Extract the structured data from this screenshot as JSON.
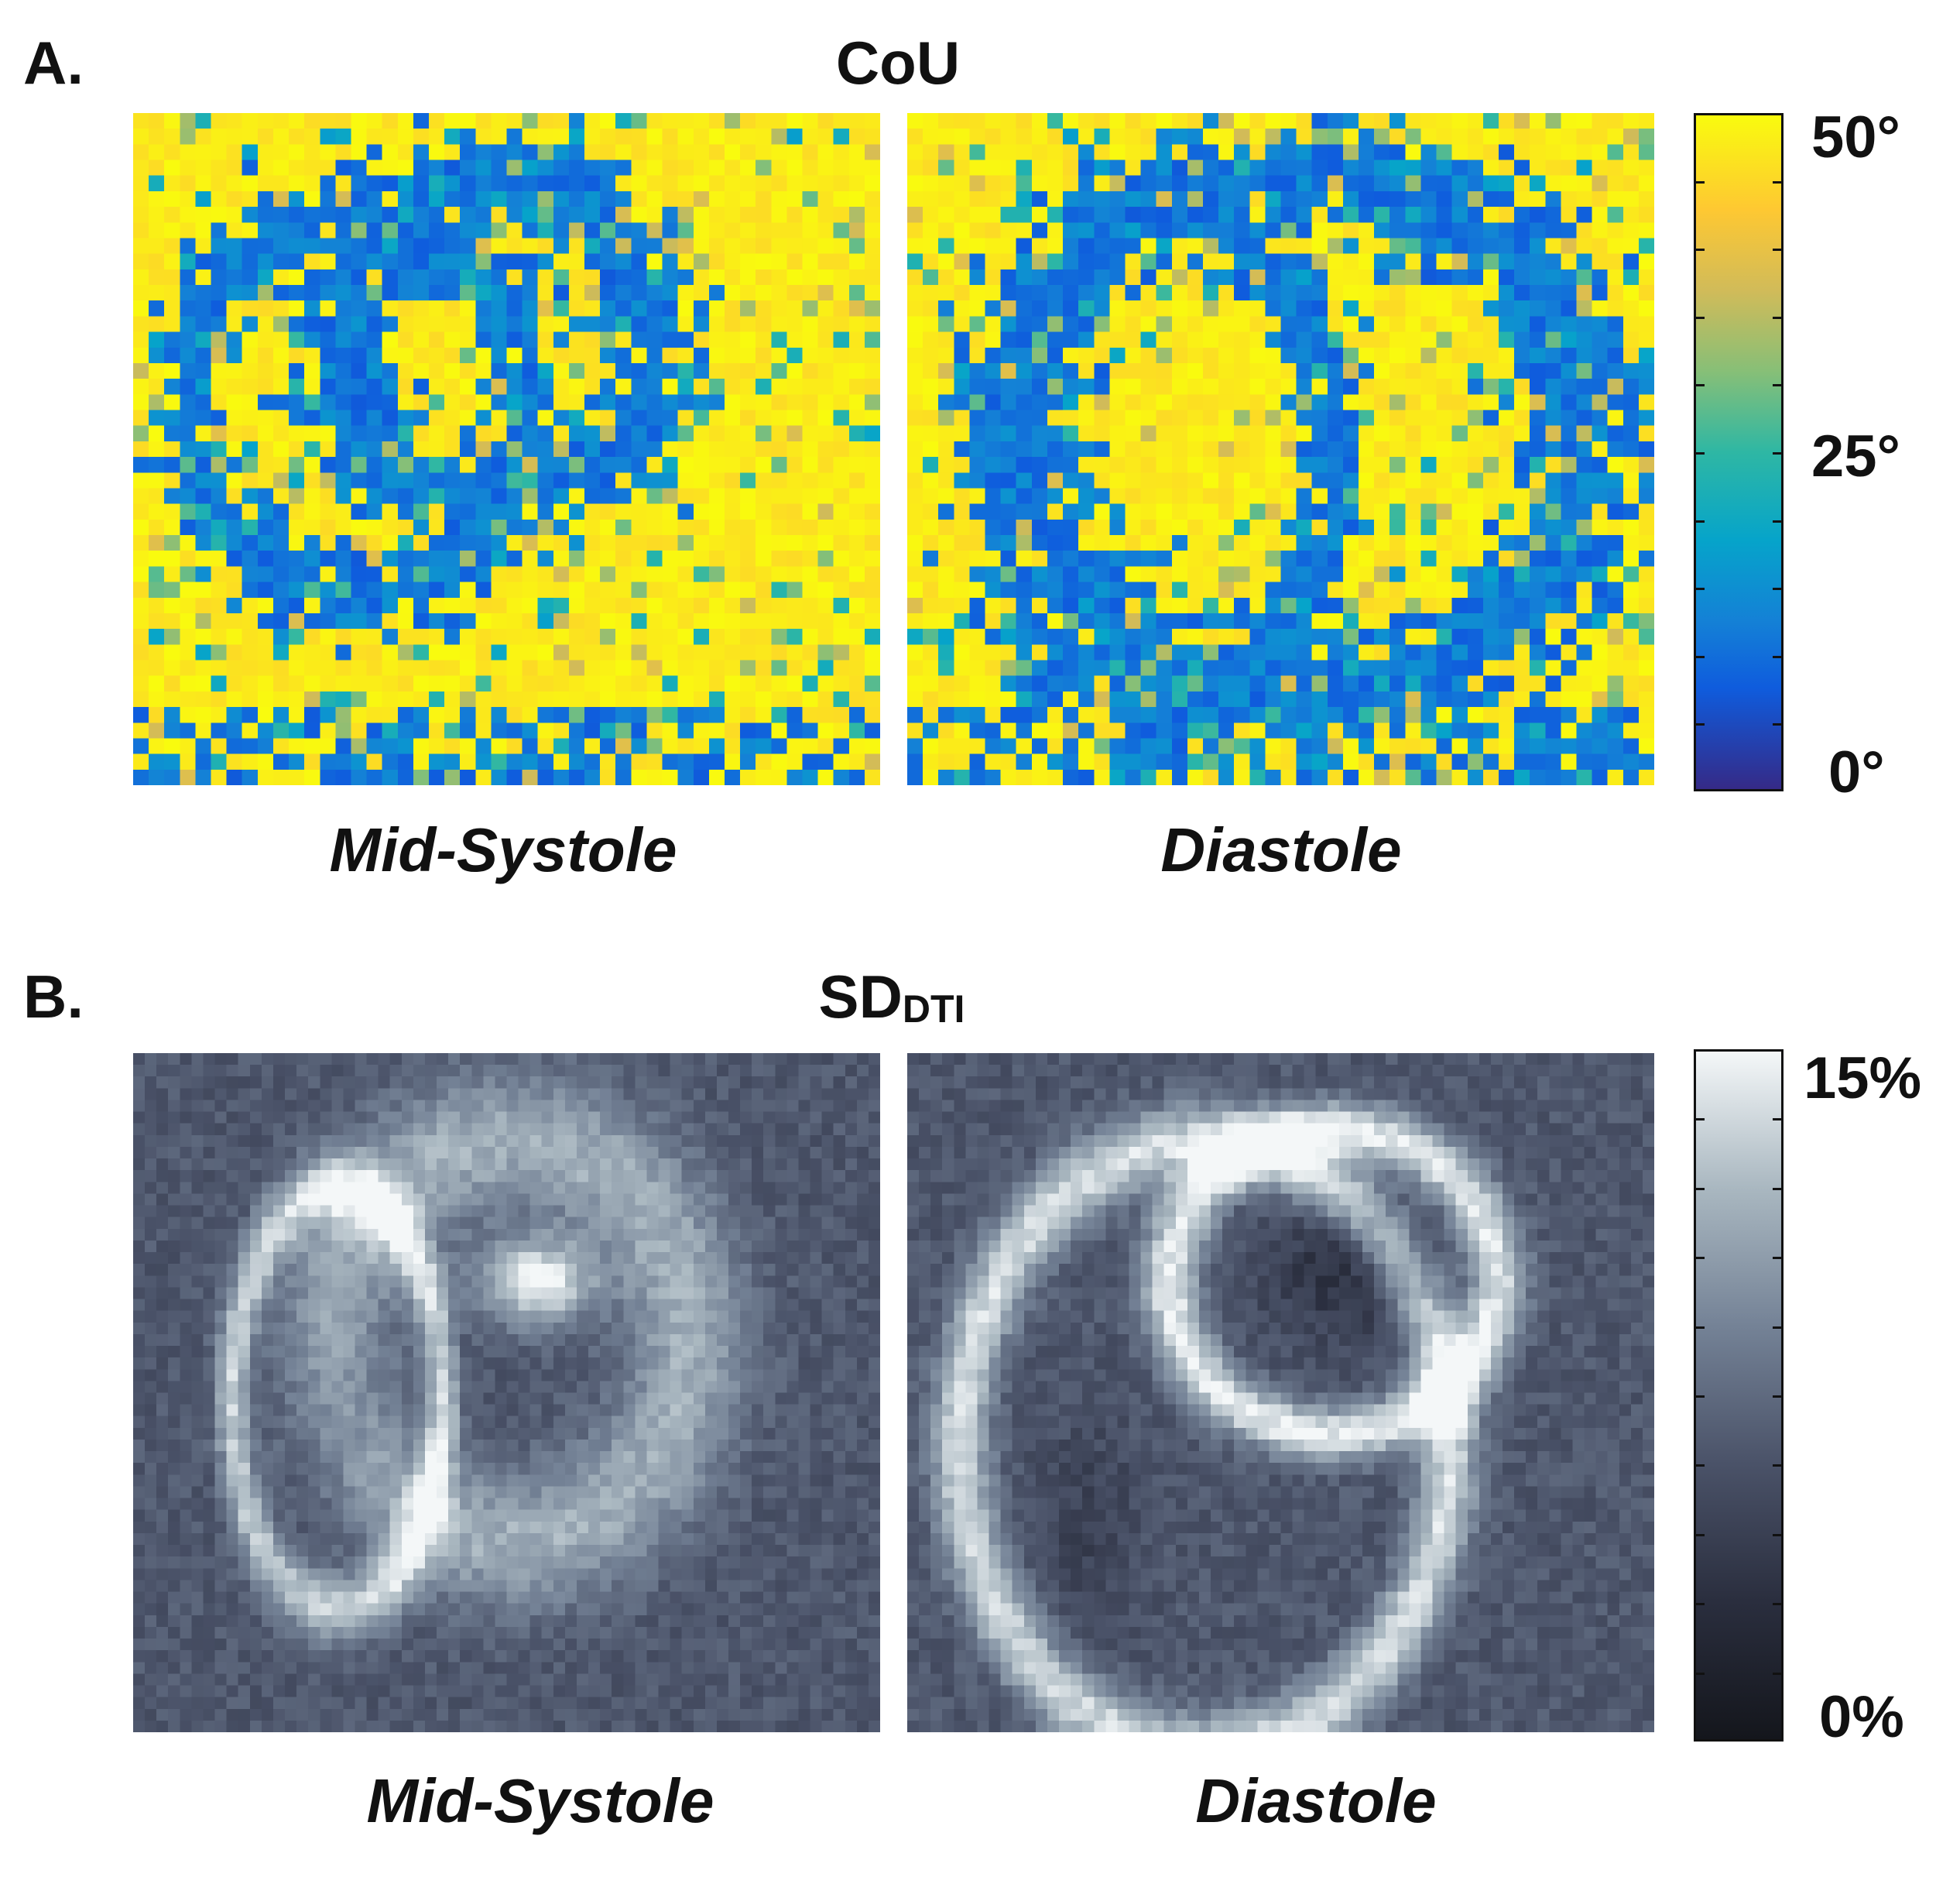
{
  "panel_a": {
    "letter": "A.",
    "title": "CoU",
    "captions": {
      "left": "Mid-Systole",
      "right": "Diastole"
    },
    "colorbar": {
      "colormap": "parula",
      "max_label": "50°",
      "mid_label": "25°",
      "min_label": "0°"
    }
  },
  "panel_b": {
    "letter": "B.",
    "title_main": "SD",
    "title_sub": "DTI",
    "captions": {
      "left": "Mid-Systole",
      "right": "Diastole"
    },
    "colorbar": {
      "colormap": "bone",
      "max_label": "15%",
      "min_label": "0%"
    }
  }
}
